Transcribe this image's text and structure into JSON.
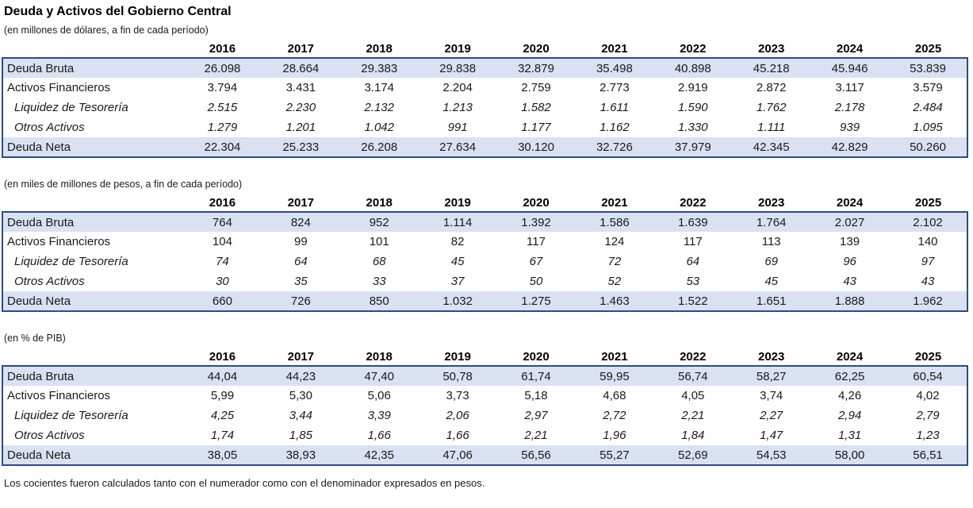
{
  "title": "Deuda y Activos del Gobierno Central",
  "footnote": "Los cocientes fueron calculados tanto con el numerador como con el denominador expresados en pesos.",
  "colors": {
    "row_highlight": "#D9E1F2",
    "table_border": "#2D4C82"
  },
  "years": [
    "2016",
    "2017",
    "2018",
    "2019",
    "2020",
    "2021",
    "2022",
    "2023",
    "2024",
    "2025"
  ],
  "tables": [
    {
      "subtitle": "(en millones de dólares, a fin de cada período)",
      "rows": [
        {
          "label": "Deuda Bruta",
          "style": "total",
          "values": [
            "26.098",
            "28.664",
            "29.383",
            "29.838",
            "32.879",
            "35.498",
            "40.898",
            "45.218",
            "45.946",
            "53.839"
          ]
        },
        {
          "label": "Activos Financieros",
          "style": "normal",
          "values": [
            "3.794",
            "3.431",
            "3.174",
            "2.204",
            "2.759",
            "2.773",
            "2.919",
            "2.872",
            "3.117",
            "3.579"
          ]
        },
        {
          "label": "Liquidez de Tesorería",
          "style": "italic",
          "values": [
            "2.515",
            "2.230",
            "2.132",
            "1.213",
            "1.582",
            "1.611",
            "1.590",
            "1.762",
            "2.178",
            "2.484"
          ]
        },
        {
          "label": "Otros Activos",
          "style": "italic",
          "values": [
            "1.279",
            "1.201",
            "1.042",
            "991",
            "1.177",
            "1.162",
            "1.330",
            "1.111",
            "939",
            "1.095"
          ]
        },
        {
          "label": "Deuda Neta",
          "style": "total",
          "values": [
            "22.304",
            "25.233",
            "26.208",
            "27.634",
            "30.120",
            "32.726",
            "37.979",
            "42.345",
            "42.829",
            "50.260"
          ]
        }
      ]
    },
    {
      "subtitle": "(en miles de millones de pesos, a fin de cada período)",
      "rows": [
        {
          "label": "Deuda Bruta",
          "style": "total",
          "values": [
            "764",
            "824",
            "952",
            "1.114",
            "1.392",
            "1.586",
            "1.639",
            "1.764",
            "2.027",
            "2.102"
          ]
        },
        {
          "label": "Activos Financieros",
          "style": "normal",
          "values": [
            "104",
            "99",
            "101",
            "82",
            "117",
            "124",
            "117",
            "113",
            "139",
            "140"
          ]
        },
        {
          "label": "Liquidez de Tesorería",
          "style": "italic",
          "values": [
            "74",
            "64",
            "68",
            "45",
            "67",
            "72",
            "64",
            "69",
            "96",
            "97"
          ]
        },
        {
          "label": "Otros Activos",
          "style": "italic",
          "values": [
            "30",
            "35",
            "33",
            "37",
            "50",
            "52",
            "53",
            "45",
            "43",
            "43"
          ]
        },
        {
          "label": "Deuda Neta",
          "style": "total",
          "values": [
            "660",
            "726",
            "850",
            "1.032",
            "1.275",
            "1.463",
            "1.522",
            "1.651",
            "1.888",
            "1.962"
          ]
        }
      ]
    },
    {
      "subtitle": "(en % de PIB)",
      "rows": [
        {
          "label": "Deuda Bruta",
          "style": "total",
          "values": [
            "44,04",
            "44,23",
            "47,40",
            "50,78",
            "61,74",
            "59,95",
            "56,74",
            "58,27",
            "62,25",
            "60,54"
          ]
        },
        {
          "label": "Activos Financieros",
          "style": "normal",
          "values": [
            "5,99",
            "5,30",
            "5,06",
            "3,73",
            "5,18",
            "4,68",
            "4,05",
            "3,74",
            "4,26",
            "4,02"
          ]
        },
        {
          "label": "Liquidez de Tesorería",
          "style": "italic",
          "values": [
            "4,25",
            "3,44",
            "3,39",
            "2,06",
            "2,97",
            "2,72",
            "2,21",
            "2,27",
            "2,94",
            "2,79"
          ]
        },
        {
          "label": "Otros Activos",
          "style": "italic",
          "values": [
            "1,74",
            "1,85",
            "1,66",
            "1,66",
            "2,21",
            "1,96",
            "1,84",
            "1,47",
            "1,31",
            "1,23"
          ]
        },
        {
          "label": "Deuda Neta",
          "style": "total",
          "values": [
            "38,05",
            "38,93",
            "42,35",
            "47,06",
            "56,56",
            "55,27",
            "52,69",
            "54,53",
            "58,00",
            "56,51"
          ]
        }
      ]
    }
  ]
}
